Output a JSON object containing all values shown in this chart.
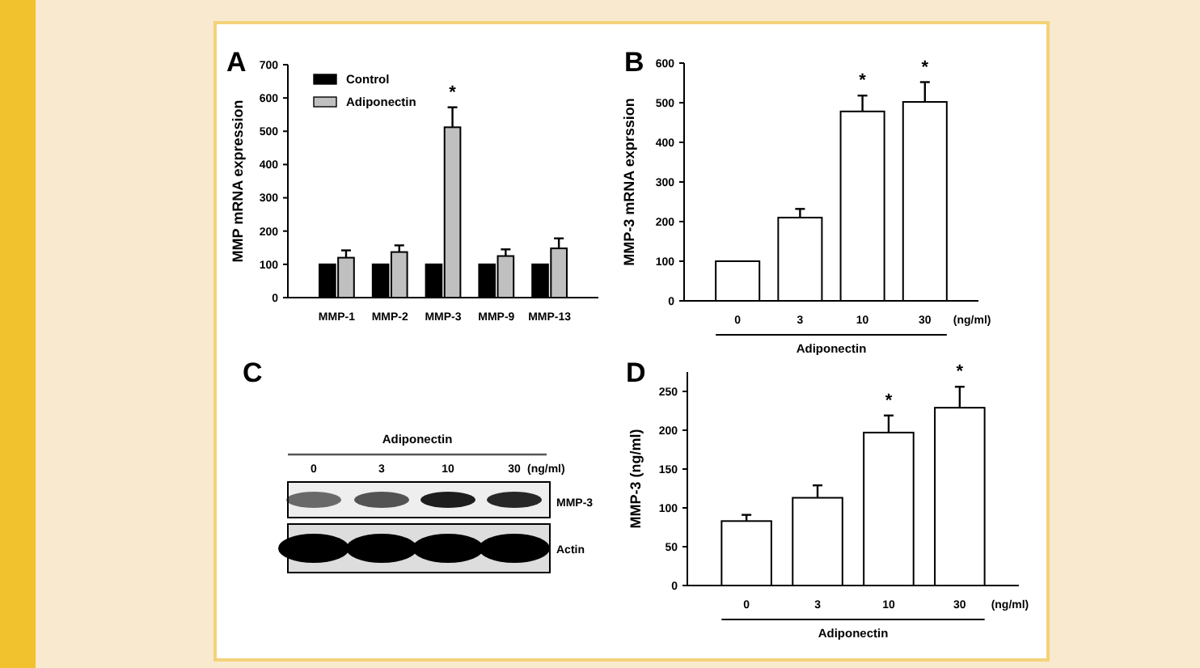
{
  "chart_data": [
    {
      "type": "bar",
      "title": "A",
      "ylabel": "MMP mRNA expression",
      "categories": [
        "MMP-1",
        "MMP-2",
        "MMP-3",
        "MMP-9",
        "MMP-13"
      ],
      "series": [
        {
          "name": "Control",
          "color": "#000000",
          "values": [
            100,
            100,
            100,
            100,
            100
          ]
        },
        {
          "name": "Adiponectin",
          "color": "#c0c0c0",
          "values": [
            120,
            137,
            512,
            125,
            148
          ],
          "errors": [
            [
              120,
              142
            ],
            [
              137,
              157
            ],
            [
              512,
              572
            ],
            [
              125,
              145
            ],
            [
              148,
              178
            ]
          ]
        }
      ],
      "ylim": [
        0,
        700
      ],
      "yticks": [
        0,
        100,
        200,
        300,
        400,
        500,
        600,
        700
      ],
      "legend": "top left",
      "annotations": [
        {
          "text": "*",
          "x": "MMP-3",
          "y": 572
        }
      ]
    },
    {
      "type": "bar",
      "title": "B",
      "ylabel": "MMP-3 mRNA exprssion",
      "xlabel": "Adiponectin",
      "categories": [
        "0",
        "3",
        "10",
        "30"
      ],
      "series": [
        {
          "color": "#ffffff",
          "values": [
            100,
            210,
            478,
            502
          ],
          "errors": [
            null,
            [
              210,
              232
            ],
            [
              478,
              518
            ],
            [
              502,
              552
            ]
          ]
        }
      ],
      "ylim": [
        0,
        600
      ],
      "yticks": [
        0,
        100,
        200,
        300,
        400,
        500,
        600
      ],
      "annotations": [
        "(ng/ml)",
        {
          "text": "*",
          "x": "10",
          "y": 518
        },
        {
          "text": "*",
          "x": "30",
          "y": 552
        }
      ]
    },
    {
      "type": "other",
      "title": "C",
      "annotations": [
        "Adiponectin",
        "0",
        "3",
        "10",
        "30",
        "(ng/ml)",
        "MMP-3",
        "Actin"
      ]
    },
    {
      "type": "bar",
      "title": "D",
      "ylabel": "MMP-3 (ng/ml)",
      "xlabel": "Adiponectin",
      "categories": [
        "0",
        "3",
        "10",
        "30"
      ],
      "series": [
        {
          "color": "#ffffff",
          "values": [
            83,
            113,
            197,
            229
          ],
          "errors": [
            [
              83,
              91
            ],
            [
              113,
              129
            ],
            [
              197,
              219
            ],
            [
              229,
              256
            ]
          ]
        }
      ],
      "ylim": [
        0,
        275
      ],
      "yticks": [
        0,
        50,
        100,
        150,
        200,
        250
      ],
      "annotations": [
        "(ng/ml)",
        {
          "text": "*",
          "x": "10",
          "y": 219
        },
        {
          "text": "*",
          "x": "30",
          "y": 256
        }
      ]
    }
  ]
}
